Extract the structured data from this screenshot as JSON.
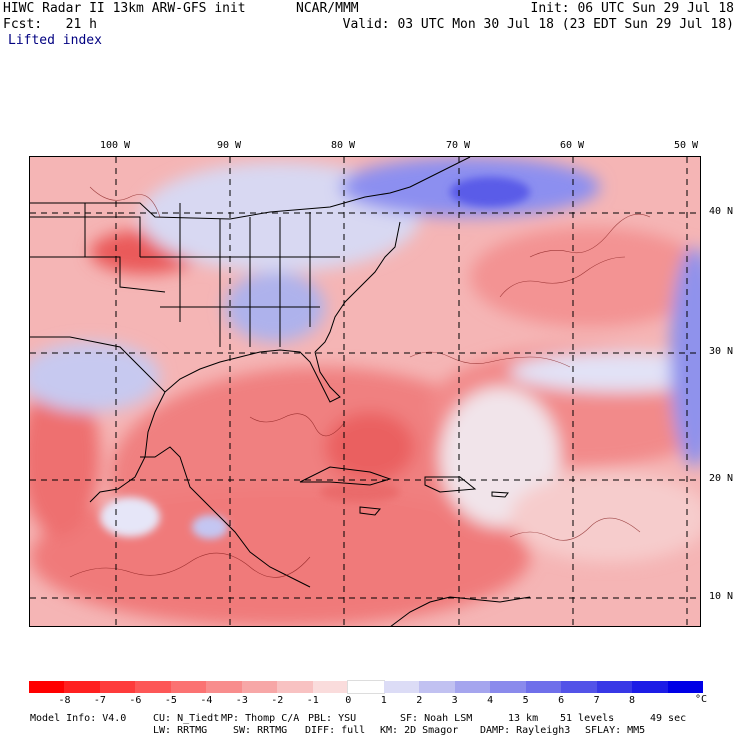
{
  "header": {
    "model_title": "HIWC Radar II 13km ARW-GFS init",
    "org": "NCAR/MMM",
    "init": "Init: 06 UTC Sun 29 Jul 18",
    "fcst": "Fcst:   21 h",
    "valid": "Valid: 03 UTC Mon 30 Jul 18 (23 EDT Sun 29 Jul 18)",
    "field": "Lifted index"
  },
  "axes": {
    "lon_labels": [
      "100 W",
      "90 W",
      "80 W",
      "70 W",
      "60 W",
      "50 W"
    ],
    "lat_labels": [
      "40 N",
      "30 N",
      "20 N",
      "10 N"
    ]
  },
  "colorbar": {
    "labels": [
      "-8",
      "-7",
      "-6",
      "-5",
      "-4",
      "-3",
      "-2",
      "-1",
      "0",
      "1",
      "2",
      "3",
      "4",
      "5",
      "6",
      "7",
      "8"
    ],
    "unit": "°C",
    "colors": [
      "#ff0000",
      "#ff2020",
      "#fe3b3b",
      "#fd5757",
      "#fb7272",
      "#f88d8d",
      "#f7a7a7",
      "#f8c2c2",
      "#fadcdc",
      "#ffffff",
      "#dcdcf6",
      "#c1c1f1",
      "#a5a5ee",
      "#8a8aec",
      "#6f6fea",
      "#5353e8",
      "#3838e6",
      "#1c1ce6",
      "#0000e6"
    ]
  },
  "footer": {
    "model_info": "Model Info: V4.0",
    "cu": "CU: N_Tiedt",
    "mp": "MP: Thomp C/A",
    "pbl": "PBL: YSU",
    "sf": "SF: Noah LSM",
    "res": "13 km",
    "levels": "51 levels",
    "dt": "49 sec",
    "lw": "LW: RRTMG",
    "sw": "SW: RRTMG",
    "diff": "DIFF: full",
    "km": "KM: 2D Smagor",
    "damp": "DAMP: Rayleigh3",
    "sflay": "SFLAY: MM5"
  }
}
